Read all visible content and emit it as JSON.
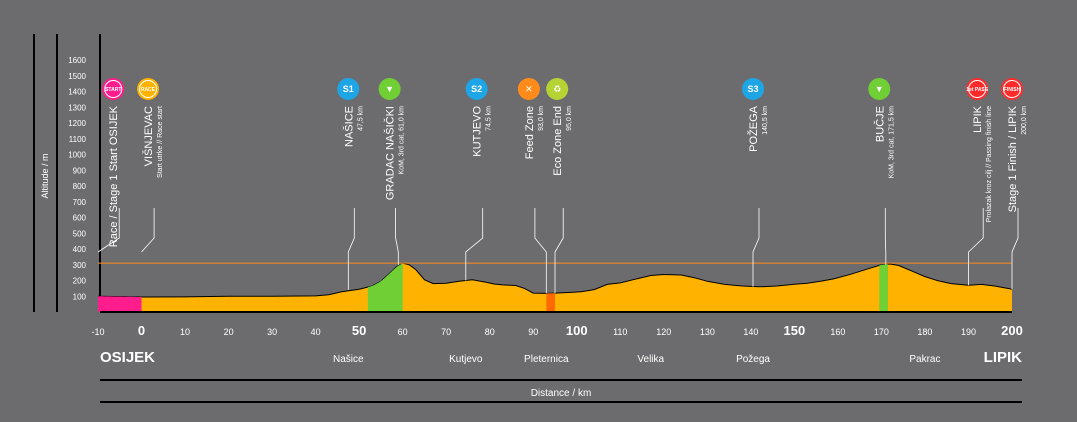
{
  "colors": {
    "background": "#6c6c6e",
    "profile_fill": "#ffb300",
    "start_segment": "#ff1c8d",
    "kom_segment": "#6fcf35",
    "feed_segment": "#ff6a00",
    "reference_line": "#ff8c1a",
    "start_icon": "#ff1c8d",
    "race_icon": "#ffb300",
    "sprint_icon": "#1da5e6",
    "kom_icon": "#6fcf35",
    "feed_icon": "#ff8c1a",
    "eco_icon": "#b5d334",
    "finish_icon": "#ff2b2b"
  },
  "chart_data": {
    "type": "area",
    "ylabel": "Altitude / m",
    "xlabel": "Distance / km",
    "ylim": [
      0,
      1600
    ],
    "xlim": [
      -10,
      200
    ],
    "y_ticks": [
      100,
      200,
      300,
      400,
      500,
      600,
      700,
      800,
      900,
      1000,
      1100,
      1200,
      1300,
      1400,
      1500,
      1600
    ],
    "x_ticks": [
      {
        "value": -10,
        "label": "-10",
        "big": false
      },
      {
        "value": 0,
        "label": "0",
        "big": true
      },
      {
        "value": 10,
        "label": "10",
        "big": false
      },
      {
        "value": 20,
        "label": "20",
        "big": false
      },
      {
        "value": 30,
        "label": "30",
        "big": false
      },
      {
        "value": 40,
        "label": "40",
        "big": false
      },
      {
        "value": 50,
        "label": "50",
        "big": true
      },
      {
        "value": 60,
        "label": "60",
        "big": false
      },
      {
        "value": 70,
        "label": "70",
        "big": false
      },
      {
        "value": 80,
        "label": "80",
        "big": false
      },
      {
        "value": 90,
        "label": "90",
        "big": false
      },
      {
        "value": 100,
        "label": "100",
        "big": true
      },
      {
        "value": 110,
        "label": "110",
        "big": false
      },
      {
        "value": 120,
        "label": "120",
        "big": false
      },
      {
        "value": 130,
        "label": "130",
        "big": false
      },
      {
        "value": 140,
        "label": "140",
        "big": false
      },
      {
        "value": 150,
        "label": "150",
        "big": true
      },
      {
        "value": 160,
        "label": "160",
        "big": false
      },
      {
        "value": 170,
        "label": "170",
        "big": false
      },
      {
        "value": 180,
        "label": "180",
        "big": false
      },
      {
        "value": 190,
        "label": "190",
        "big": false
      },
      {
        "value": 200,
        "label": "200",
        "big": true
      }
    ],
    "reference_line_altitude": 310,
    "profile": [
      [
        -10,
        100
      ],
      [
        0,
        95
      ],
      [
        10,
        96
      ],
      [
        20,
        100
      ],
      [
        30,
        100
      ],
      [
        40,
        102
      ],
      [
        43,
        110
      ],
      [
        46,
        128
      ],
      [
        50,
        145
      ],
      [
        53,
        165
      ],
      [
        55,
        195
      ],
      [
        57,
        245
      ],
      [
        58.5,
        285
      ],
      [
        60,
        310
      ],
      [
        61.5,
        300
      ],
      [
        63,
        270
      ],
      [
        65,
        205
      ],
      [
        67,
        180
      ],
      [
        70,
        182
      ],
      [
        73,
        195
      ],
      [
        76,
        205
      ],
      [
        79,
        190
      ],
      [
        81,
        178
      ],
      [
        83,
        172
      ],
      [
        86,
        168
      ],
      [
        88,
        150
      ],
      [
        90,
        120
      ],
      [
        93,
        118
      ],
      [
        95,
        120
      ],
      [
        98,
        124
      ],
      [
        101,
        128
      ],
      [
        104,
        142
      ],
      [
        107,
        175
      ],
      [
        110,
        185
      ],
      [
        114,
        212
      ],
      [
        117,
        232
      ],
      [
        120,
        238
      ],
      [
        124,
        235
      ],
      [
        127,
        218
      ],
      [
        130,
        195
      ],
      [
        134,
        175
      ],
      [
        138,
        165
      ],
      [
        142,
        160
      ],
      [
        146,
        165
      ],
      [
        150,
        176
      ],
      [
        153,
        182
      ],
      [
        156,
        195
      ],
      [
        159,
        210
      ],
      [
        163,
        240
      ],
      [
        167,
        275
      ],
      [
        170,
        300
      ],
      [
        172,
        305
      ],
      [
        174,
        295
      ],
      [
        177,
        260
      ],
      [
        180,
        225
      ],
      [
        183,
        198
      ],
      [
        186,
        180
      ],
      [
        190,
        170
      ],
      [
        193,
        175
      ],
      [
        196,
        165
      ],
      [
        199,
        150
      ],
      [
        200,
        145
      ]
    ],
    "segments": [
      {
        "name": "start",
        "from": -10,
        "to": 0
      },
      {
        "name": "kom",
        "from": 52,
        "to": 60
      },
      {
        "name": "feed",
        "from": 93,
        "to": 95
      },
      {
        "name": "kom2",
        "from": 169.5,
        "to": 171.5
      }
    ],
    "towns": [
      {
        "km": -10,
        "label": "OSIJEK",
        "big": true,
        "anchor": "start"
      },
      {
        "km": 47.5,
        "label": "Našice",
        "big": false,
        "anchor": "middle"
      },
      {
        "km": 74.5,
        "label": "Kutjevo",
        "big": false,
        "anchor": "middle"
      },
      {
        "km": 93,
        "label": "Pleternica",
        "big": false,
        "anchor": "middle"
      },
      {
        "km": 117,
        "label": "Velika",
        "big": false,
        "anchor": "middle"
      },
      {
        "km": 140.5,
        "label": "Požega",
        "big": false,
        "anchor": "middle"
      },
      {
        "km": 180,
        "label": "Pakrac",
        "big": false,
        "anchor": "middle"
      },
      {
        "km": 200,
        "label": "LIPIK",
        "big": true,
        "anchor": "end"
      }
    ],
    "points": [
      {
        "km": -6.5,
        "icon": "start",
        "icon_text": "START",
        "name": "Race / Stage 1 Start  OSIJEK",
        "sub": "",
        "line_to_km": -10,
        "line_alt": 480
      },
      {
        "km": 1.5,
        "icon": "race",
        "icon_text": "RACE",
        "name": "VIŠNJEVAC",
        "sub": "Start utrke // Race start",
        "line_to_km": 0,
        "line_alt": 480
      },
      {
        "km": 47.5,
        "icon": "sprint",
        "icon_text": "S1",
        "name": "NAŠICE",
        "sub": "47,5 km",
        "line_to_km": 47.5,
        "line_alt": 140
      },
      {
        "km": 57,
        "icon": "kom",
        "icon_text": "▼",
        "name": "GRADAC NAŠIČKI",
        "sub": "KoM, 3rd cat, 61,0 km",
        "line_to_km": 59,
        "line_alt": 300
      },
      {
        "km": 77,
        "icon": "sprint",
        "icon_text": "S2",
        "name": "KUTJEVO",
        "sub": "74,5 km",
        "line_to_km": 74.5,
        "line_alt": 200
      },
      {
        "km": 89,
        "icon": "feed",
        "icon_text": "✕",
        "name": "Feed Zone",
        "sub": "93,0 km",
        "line_to_km": 93,
        "line_alt": 120
      },
      {
        "km": 95.5,
        "icon": "eco",
        "icon_text": "♻",
        "name": "Eco Zone End",
        "sub": "95,0 km",
        "line_to_km": 95,
        "line_alt": 120
      },
      {
        "km": 140.5,
        "icon": "sprint",
        "icon_text": "S3",
        "name": "POŽEGA",
        "sub": "140,5 km",
        "line_to_km": 140.5,
        "line_alt": 160
      },
      {
        "km": 169.5,
        "icon": "kom",
        "icon_text": "▼",
        "name": "BUČJE",
        "sub": "KoM, 3rd cat, 171,5 km",
        "line_to_km": 171,
        "line_alt": 300
      },
      {
        "km": 192,
        "icon": "finish",
        "icon_text": "1st PASS",
        "name": "LIPIK",
        "sub": "Prolazak kroz cilj // Passing finish line",
        "line_to_km": 190,
        "line_alt": 170
      },
      {
        "km": 200,
        "icon": "finish",
        "icon_text": "FINISH",
        "name": "Stage 1 Finish  /  LIPIK",
        "sub": "200,0 km",
        "line_to_km": 200,
        "line_alt": 145
      }
    ]
  }
}
